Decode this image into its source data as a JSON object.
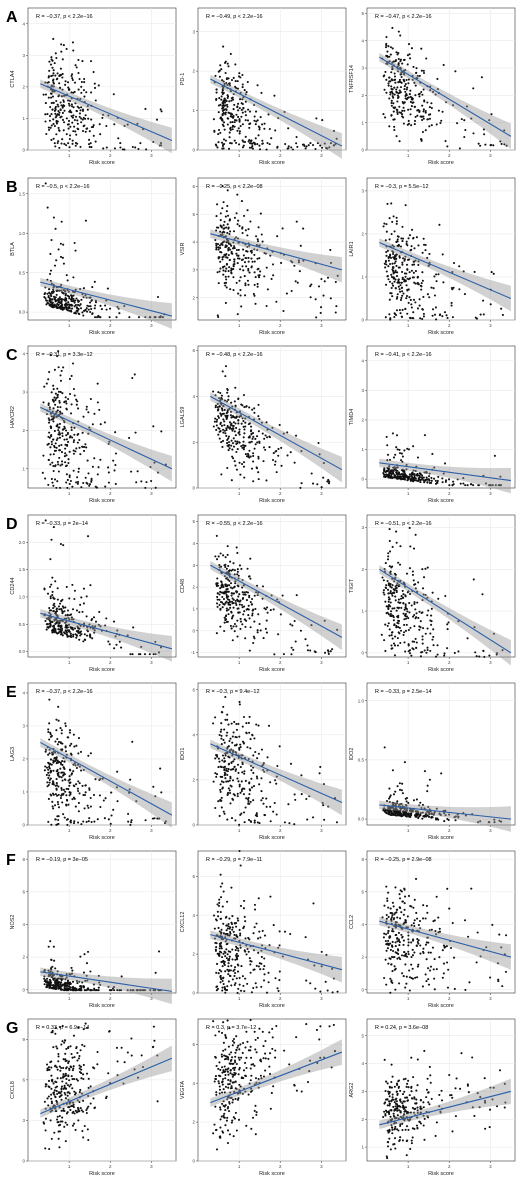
{
  "panel_letters": [
    "A",
    "B",
    "C",
    "D",
    "E",
    "F",
    "G"
  ],
  "chart_data": [
    {
      "type": "scatter",
      "panel": "A",
      "ylabel": "CTLA4",
      "xlabel": "Risk score",
      "annotation": "R = −0.37, p < 2.2e−16",
      "ylim": [
        0,
        4.5
      ],
      "yticks": [
        0,
        1,
        2,
        3,
        4
      ],
      "xlim": [
        0,
        3.6
      ],
      "xticks": [
        1,
        2,
        3
      ],
      "fit": {
        "y0": 2.1,
        "y1": 0.3
      },
      "cloud": {
        "mu": 1.9,
        "sd": 0.75,
        "skew": 0
      }
    },
    {
      "type": "scatter",
      "panel": "A",
      "ylabel": "PD-1",
      "xlabel": "Risk score",
      "annotation": "R = −0.49, p < 2.2e−16",
      "ylim": [
        0,
        3.6
      ],
      "yticks": [
        0,
        1,
        2,
        3
      ],
      "xlim": [
        0,
        3.6
      ],
      "xticks": [
        1,
        2,
        3
      ],
      "fit": {
        "y0": 1.8,
        "y1": 0.1
      },
      "cloud": {
        "mu": 1.3,
        "sd": 0.6,
        "skew": 0.2
      }
    },
    {
      "type": "scatter",
      "panel": "A",
      "ylabel": "TNFRSF14",
      "xlabel": "Risk score",
      "annotation": "R = −0.47, p < 2.2e−16",
      "ylim": [
        0,
        5.2
      ],
      "yticks": [
        0,
        1,
        2,
        3,
        4,
        5
      ],
      "xlim": [
        0,
        3.6
      ],
      "xticks": [
        1,
        2,
        3
      ],
      "fit": {
        "y0": 3.4,
        "y1": 0.5
      },
      "cloud": {
        "mu": 2.7,
        "sd": 0.8,
        "skew": 0
      }
    },
    {
      "type": "scatter",
      "panel": "B",
      "ylabel": "BTLA",
      "xlabel": "Risk score",
      "annotation": "R = −0.5, p < 2.2e−16",
      "ylim": [
        -0.1,
        1.7
      ],
      "yticks": [
        0,
        0.5,
        1,
        1.5
      ],
      "ytick_labels": [
        "0.0",
        "0.5",
        "1.0",
        "1.5"
      ],
      "xlim": [
        0,
        3.6
      ],
      "xticks": [
        1,
        2,
        3
      ],
      "fit": {
        "y0": 0.38,
        "y1": -0.05
      },
      "cloud": {
        "mu": 0.15,
        "sd": 0.15,
        "skew": 0.9
      }
    },
    {
      "type": "scatter",
      "panel": "B",
      "ylabel": "VSIR",
      "xlabel": "Risk score",
      "annotation": "R = −0.25, p < 2.2e−08",
      "ylim": [
        1.2,
        6.3
      ],
      "yticks": [
        2,
        3,
        4,
        5,
        6
      ],
      "xlim": [
        0,
        3.6
      ],
      "xticks": [
        1,
        2,
        3
      ],
      "fit": {
        "y0": 4.3,
        "y1": 3.0
      },
      "cloud": {
        "mu": 3.9,
        "sd": 0.9,
        "skew": 0
      }
    },
    {
      "type": "scatter",
      "panel": "B",
      "ylabel": "LAIR1",
      "xlabel": "Risk score",
      "annotation": "R = −0.3, p = 5.5e−12",
      "ylim": [
        0,
        3.3
      ],
      "yticks": [
        0,
        1,
        2,
        3
      ],
      "xlim": [
        0,
        3.6
      ],
      "xticks": [
        1,
        2,
        3
      ],
      "fit": {
        "y0": 1.8,
        "y1": 0.5
      },
      "cloud": {
        "mu": 1.4,
        "sd": 0.6,
        "skew": 0
      }
    },
    {
      "type": "scatter",
      "panel": "C",
      "ylabel": "HAVCR2",
      "xlabel": "Risk score",
      "annotation": "R = −0.31, p = 3.3e−12",
      "ylim": [
        0.5,
        4.2
      ],
      "yticks": [
        1,
        2,
        3,
        4
      ],
      "xlim": [
        0,
        3.6
      ],
      "xticks": [
        1,
        2,
        3
      ],
      "fit": {
        "y0": 2.6,
        "y1": 1.0
      },
      "cloud": {
        "mu": 2.3,
        "sd": 0.8,
        "skew": 0
      }
    },
    {
      "type": "scatter",
      "panel": "C",
      "ylabel": "LGALS9",
      "xlabel": "Risk score",
      "annotation": "R = −0.48, p < 2.2e−16",
      "ylim": [
        0,
        6.2
      ],
      "yticks": [
        0,
        2,
        4,
        6
      ],
      "xlim": [
        0,
        3.6
      ],
      "xticks": [
        1,
        2,
        3
      ],
      "fit": {
        "y0": 4.0,
        "y1": 0.8
      },
      "cloud": {
        "mu": 3.2,
        "sd": 0.9,
        "skew": 0
      }
    },
    {
      "type": "scatter",
      "panel": "C",
      "ylabel": "TIMD4",
      "xlabel": "Risk score",
      "annotation": "R = −0.41, p < 2.2e−16",
      "ylim": [
        -0.3,
        4.5
      ],
      "yticks": [
        0,
        1,
        2,
        3,
        4
      ],
      "xlim": [
        0,
        3.6
      ],
      "xticks": [
        1,
        2,
        3
      ],
      "fit": {
        "y0": 0.55,
        "y1": -0.05
      },
      "cloud": {
        "mu": 0.15,
        "sd": 0.2,
        "skew": 0.9
      }
    },
    {
      "type": "scatter",
      "panel": "D",
      "ylabel": "CD244",
      "xlabel": "Risk score",
      "annotation": "R = −0.33, p = 2e−14",
      "ylim": [
        -0.1,
        2.5
      ],
      "yticks": [
        0,
        0.5,
        1,
        1.5,
        2
      ],
      "ytick_labels": [
        "0.0",
        "0.5",
        "1.0",
        "1.5",
        "2.0"
      ],
      "xlim": [
        0,
        3.6
      ],
      "xticks": [
        1,
        2,
        3
      ],
      "fit": {
        "y0": 0.7,
        "y1": 0.05
      },
      "cloud": {
        "mu": 0.5,
        "sd": 0.3,
        "skew": 0.6
      }
    },
    {
      "type": "scatter",
      "panel": "D",
      "ylabel": "CD48",
      "xlabel": "Risk score",
      "annotation": "R = −0.55, p < 2.2e−16",
      "ylim": [
        -1.2,
        5.3
      ],
      "yticks": [
        -1,
        0,
        1,
        2,
        3,
        4,
        5
      ],
      "xlim": [
        0,
        3.6
      ],
      "xticks": [
        1,
        2,
        3
      ],
      "fit": {
        "y0": 3.0,
        "y1": -0.3
      },
      "cloud": {
        "mu": 2.2,
        "sd": 0.9,
        "skew": 0
      }
    },
    {
      "type": "scatter",
      "panel": "D",
      "ylabel": "TIGIT",
      "xlabel": "Risk score",
      "annotation": "R = −0.51, p < 2.2e−16",
      "ylim": [
        -0.1,
        3.3
      ],
      "yticks": [
        0,
        1,
        2,
        3
      ],
      "xlim": [
        0,
        3.6
      ],
      "xticks": [
        1,
        2,
        3
      ],
      "fit": {
        "y0": 2.0,
        "y1": 0.0
      },
      "cloud": {
        "mu": 1.5,
        "sd": 0.6,
        "skew": 0
      }
    },
    {
      "type": "scatter",
      "panel": "E",
      "ylabel": "LAG3",
      "xlabel": "Risk score",
      "annotation": "R = −0.37, p < 2.2e−16",
      "ylim": [
        0,
        4.3
      ],
      "yticks": [
        0,
        1,
        2,
        3,
        4
      ],
      "xlim": [
        0,
        3.6
      ],
      "xticks": [
        1,
        2,
        3
      ],
      "fit": {
        "y0": 2.5,
        "y1": 0.3
      },
      "cloud": {
        "mu": 1.9,
        "sd": 0.8,
        "skew": 0
      }
    },
    {
      "type": "scatter",
      "panel": "E",
      "ylabel": "IDO1",
      "xlabel": "Risk score",
      "annotation": "R = −0.3, p = 9.4e−12",
      "ylim": [
        0,
        6.3
      ],
      "yticks": [
        0,
        2,
        4,
        6
      ],
      "xlim": [
        0,
        3.6
      ],
      "xticks": [
        1,
        2,
        3
      ],
      "fit": {
        "y0": 3.6,
        "y1": 1.0
      },
      "cloud": {
        "mu": 3.0,
        "sd": 1.3,
        "skew": 0
      }
    },
    {
      "type": "scatter",
      "panel": "E",
      "ylabel": "IDO2",
      "xlabel": "Risk score",
      "annotation": "R = −0.33, p = 2.5e−14",
      "ylim": [
        -0.05,
        1.15
      ],
      "yticks": [
        0,
        0.5,
        1
      ],
      "ytick_labels": [
        "0.0",
        "0.5",
        "1.0"
      ],
      "xlim": [
        0,
        3.6
      ],
      "xticks": [
        1,
        2,
        3
      ],
      "fit": {
        "y0": 0.12,
        "y1": 0.0
      },
      "cloud": {
        "mu": 0.06,
        "sd": 0.05,
        "skew": 0.8
      }
    },
    {
      "type": "scatter",
      "panel": "F",
      "ylabel": "NOS2",
      "xlabel": "Risk score",
      "annotation": "R = −0.19, p = 3e−05",
      "ylim": [
        -0.2,
        8.5
      ],
      "yticks": [
        0,
        2,
        4,
        6,
        8
      ],
      "xlim": [
        0,
        3.6
      ],
      "xticks": [
        1,
        2,
        3
      ],
      "fit": {
        "y0": 1.1,
        "y1": -0.1
      },
      "cloud": {
        "mu": 0.3,
        "sd": 0.4,
        "skew": 0.9
      }
    },
    {
      "type": "scatter",
      "panel": "F",
      "ylabel": "CXCL12",
      "xlabel": "Risk score",
      "annotation": "R = −0.29, p = 7.9e−11",
      "ylim": [
        0,
        7.3
      ],
      "yticks": [
        0,
        2,
        4,
        6
      ],
      "xlim": [
        0,
        3.6
      ],
      "xticks": [
        1,
        2,
        3
      ],
      "fit": {
        "y0": 3.0,
        "y1": 1.2
      },
      "cloud": {
        "mu": 2.7,
        "sd": 1.3,
        "skew": 0
      }
    },
    {
      "type": "scatter",
      "panel": "F",
      "ylabel": "CCL2",
      "xlabel": "Risk score",
      "annotation": "R = −0.25, p = 2.9e−08",
      "ylim": [
        -0.2,
        8.5
      ],
      "yticks": [
        0,
        2,
        4,
        6,
        8
      ],
      "xlim": [
        0,
        3.6
      ],
      "xticks": [
        1,
        2,
        3
      ],
      "fit": {
        "y0": 4.2,
        "y1": 2.0
      },
      "cloud": {
        "mu": 3.6,
        "sd": 1.5,
        "skew": 0
      }
    },
    {
      "type": "scatter",
      "panel": "G",
      "ylabel": "CXCL8",
      "xlabel": "Risk score",
      "annotation": "R = 0.33, p = 6.9e−14",
      "ylim": [
        0,
        10.5
      ],
      "yticks": [
        0,
        3,
        6,
        9
      ],
      "xlim": [
        0,
        3.6
      ],
      "xticks": [
        1,
        2,
        3
      ],
      "fit": {
        "y0": 3.5,
        "y1": 7.6
      },
      "cloud": {
        "mu": 4.3,
        "sd": 2.0,
        "skew": 0
      }
    },
    {
      "type": "scatter",
      "panel": "G",
      "ylabel": "VEGFA",
      "xlabel": "Risk score",
      "annotation": "R = 0.3, p = 3.7e−12",
      "ylim": [
        0,
        7.3
      ],
      "yticks": [
        0,
        2,
        4,
        6
      ],
      "xlim": [
        0,
        3.6
      ],
      "xticks": [
        1,
        2,
        3
      ],
      "fit": {
        "y0": 3.0,
        "y1": 5.6
      },
      "cloud": {
        "mu": 3.6,
        "sd": 1.3,
        "skew": 0
      }
    },
    {
      "type": "scatter",
      "panel": "G",
      "ylabel": "ARG2",
      "xlabel": "Risk score",
      "annotation": "R = 0.24, p = 3.6e−08",
      "ylim": [
        0.5,
        5.6
      ],
      "yticks": [
        1,
        2,
        3,
        4,
        5
      ],
      "xlim": [
        0,
        3.6
      ],
      "xticks": [
        1,
        2,
        3
      ],
      "fit": {
        "y0": 1.8,
        "y1": 3.0
      },
      "cloud": {
        "mu": 2.1,
        "sd": 0.7,
        "skew": 0
      }
    }
  ]
}
